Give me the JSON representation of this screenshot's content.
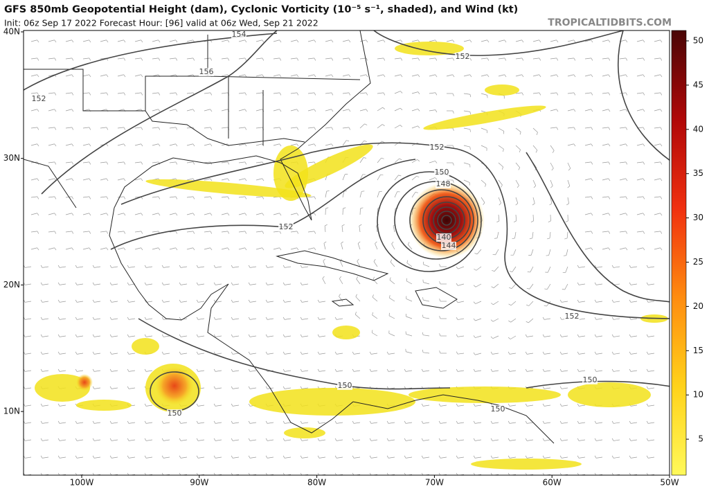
{
  "header": {
    "title": "GFS 850mb Geopotential Height (dam), Cyclonic Vorticity (10⁻⁵ s⁻¹, shaded), and Wind (kt)",
    "subtitle": "Init: 06z Sep 17 2022   Forecast Hour: [96]   valid at 06z Wed, Sep 21 2022",
    "site": "TROPICALTIDBITS.COM"
  },
  "map": {
    "lat_labels": [
      "40N",
      "30N",
      "20N",
      "10N"
    ],
    "lon_labels": [
      "100W",
      "90W",
      "80W",
      "70W",
      "60W",
      "50W"
    ],
    "contour_labels": [
      "154",
      "156",
      "152",
      "152",
      "152",
      "150",
      "148",
      "152",
      "140",
      "144",
      "152",
      "150",
      "150",
      "150",
      "150"
    ]
  },
  "colorbar": {
    "ticks": [
      "50",
      "45",
      "40",
      "35",
      "30",
      "25",
      "20",
      "15",
      "10",
      "5"
    ]
  }
}
